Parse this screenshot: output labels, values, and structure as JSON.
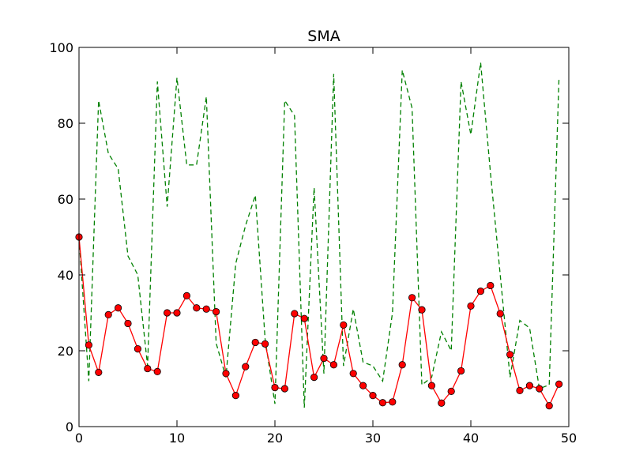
{
  "chart_data": {
    "type": "line",
    "title": "SMA",
    "xlabel": "",
    "ylabel": "",
    "xlim": [
      0,
      50
    ],
    "ylim": [
      0,
      100
    ],
    "xticks": [
      0,
      10,
      20,
      30,
      40,
      50
    ],
    "yticks": [
      0,
      20,
      40,
      60,
      80,
      100
    ],
    "grid": false,
    "legend": "none",
    "series": [
      {
        "style": "dashed",
        "color": "#008000",
        "marker": "none",
        "x": [
          0,
          1,
          2,
          3,
          4,
          5,
          6,
          7,
          8,
          9,
          10,
          11,
          12,
          13,
          14,
          15,
          16,
          17,
          18,
          19,
          20,
          21,
          22,
          23,
          24,
          25,
          26,
          27,
          28,
          29,
          30,
          31,
          32,
          33,
          34,
          35,
          36,
          37,
          38,
          39,
          40,
          41,
          42,
          43,
          44,
          45,
          46,
          47,
          48,
          49
        ],
        "values": [
          50,
          12,
          86,
          72,
          68,
          45,
          40,
          16,
          91,
          58,
          92,
          69,
          69,
          87,
          22,
          13,
          43,
          53,
          61,
          23,
          6,
          86,
          82,
          5,
          63,
          14,
          93,
          16,
          31,
          17,
          16,
          12,
          30,
          94,
          84,
          11,
          13,
          25,
          20,
          91,
          77,
          96,
          67,
          40,
          13,
          28,
          26,
          10,
          11,
          92
        ]
      },
      {
        "style": "solid",
        "color": "#ff0000",
        "marker": "circle",
        "x": [
          0,
          1,
          2,
          3,
          4,
          5,
          6,
          7,
          8,
          9,
          10,
          11,
          12,
          13,
          14,
          15,
          16,
          17,
          18,
          19,
          20,
          21,
          22,
          23,
          24,
          25,
          26,
          27,
          28,
          29,
          30,
          31,
          32,
          33,
          34,
          35,
          36,
          37,
          38,
          39,
          40,
          41,
          42,
          43,
          44,
          45,
          46,
          47,
          48,
          49
        ],
        "values": [
          50,
          21.5,
          14.3,
          29.5,
          31.3,
          27.2,
          20.5,
          15.3,
          14.5,
          30,
          30,
          34.5,
          31.3,
          31,
          30.3,
          14,
          8.2,
          15.8,
          22.2,
          21.8,
          10.3,
          10,
          29.8,
          28.5,
          13,
          18,
          16.3,
          26.8,
          14,
          10.8,
          8.2,
          6.3,
          6.5,
          16.3,
          34,
          30.8,
          10.8,
          6.2,
          9.3,
          14.7,
          31.8,
          35.7,
          37.2,
          29.8,
          19,
          9.5,
          10.8,
          10,
          5.5,
          11.2
        ]
      }
    ]
  }
}
